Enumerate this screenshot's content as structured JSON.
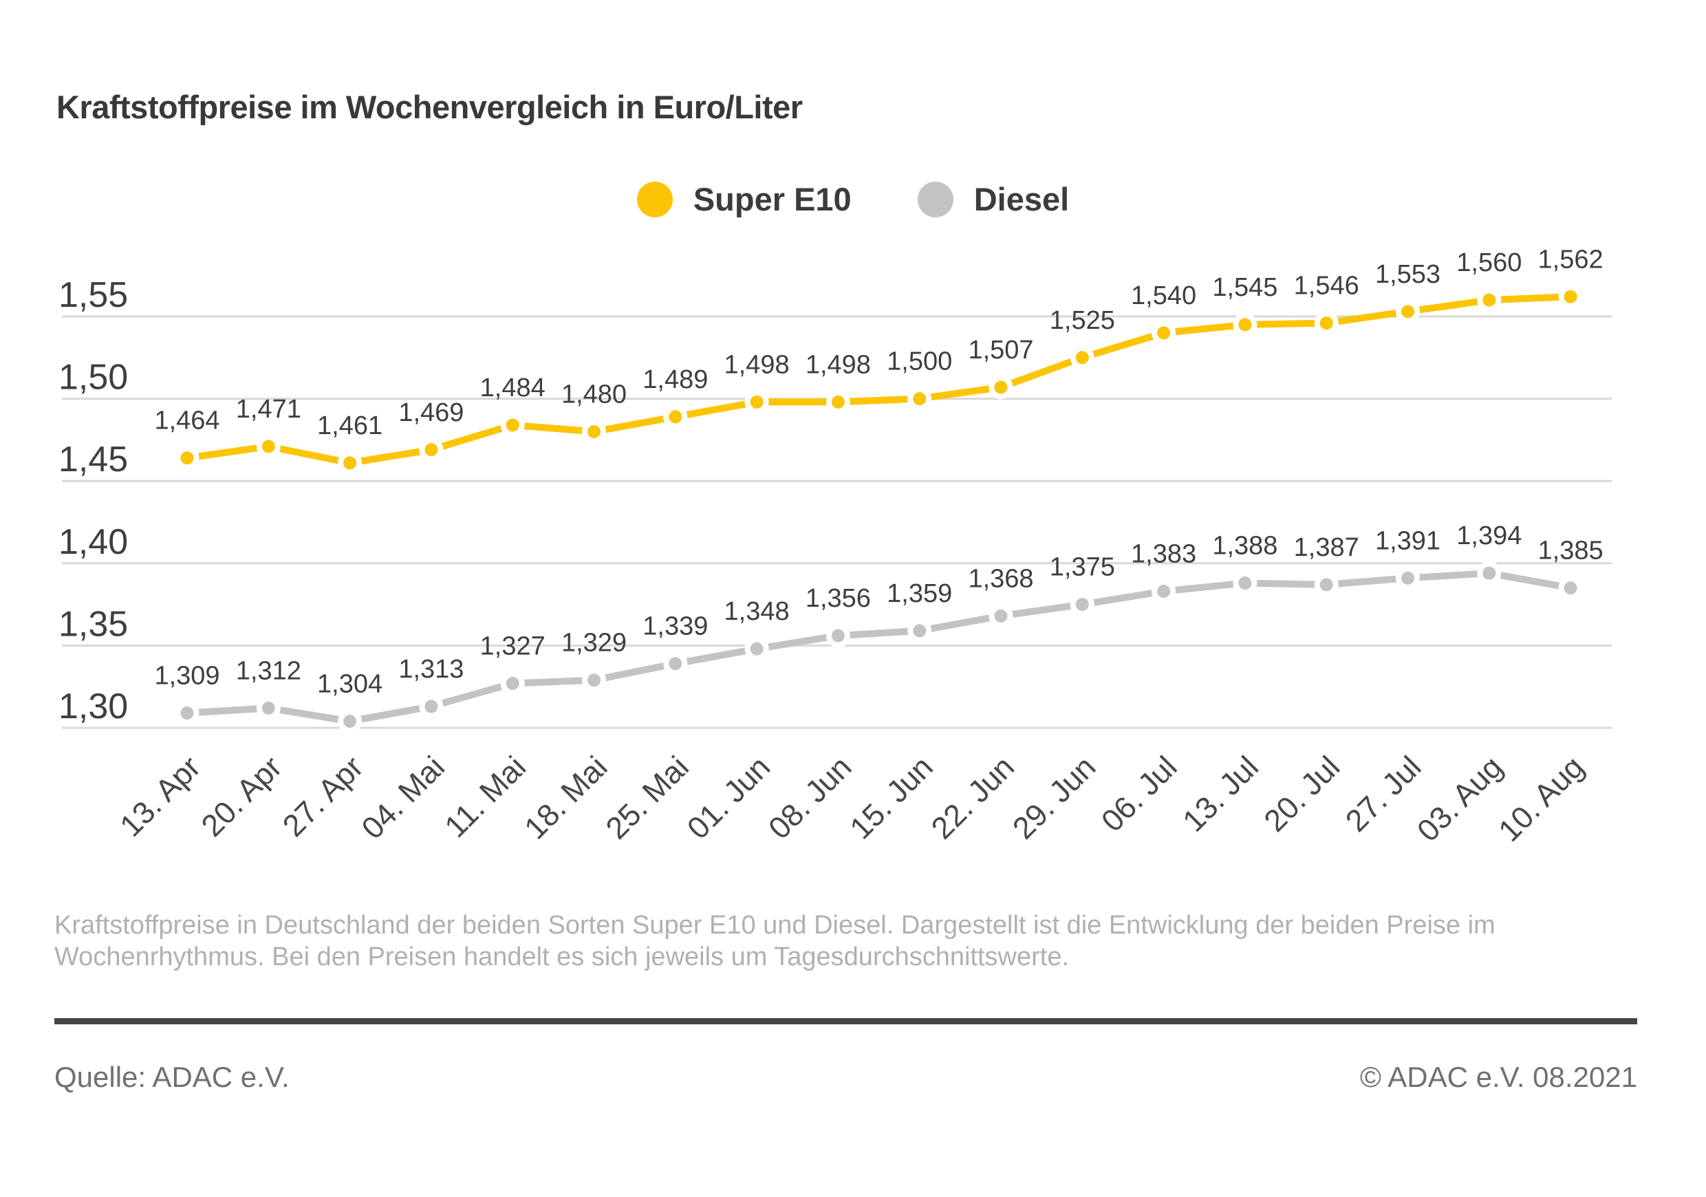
{
  "title": "Kraftstoffpreise im Wochenvergleich in Euro/Liter",
  "chart_data": {
    "type": "line",
    "categories": [
      "13. Apr",
      "20. Apr",
      "27. Apr",
      "04. Mai",
      "11. Mai",
      "18. Mai",
      "25. Mai",
      "01. Jun",
      "08. Jun",
      "15. Jun",
      "22. Jun",
      "29. Jun",
      "06. Jul",
      "13. Jul",
      "20. Jul",
      "27. Jul",
      "03. Aug",
      "10. Aug"
    ],
    "series": [
      {
        "name": "Super E10",
        "color": "#fbc505",
        "values": [
          1.464,
          1.471,
          1.461,
          1.469,
          1.484,
          1.48,
          1.489,
          1.498,
          1.498,
          1.5,
          1.507,
          1.525,
          1.54,
          1.545,
          1.546,
          1.553,
          1.56,
          1.562
        ]
      },
      {
        "name": "Diesel",
        "color": "#c3c3c3",
        "values": [
          1.309,
          1.312,
          1.304,
          1.313,
          1.327,
          1.329,
          1.339,
          1.348,
          1.356,
          1.359,
          1.368,
          1.375,
          1.383,
          1.388,
          1.387,
          1.391,
          1.394,
          1.385
        ]
      }
    ],
    "yticks": [
      1.55,
      1.5,
      1.45,
      1.4,
      1.35,
      1.3
    ],
    "ylim": [
      1.275,
      1.575
    ],
    "decimal_separator": ",",
    "grid": true,
    "legend_position": "top-center",
    "value_labels": true,
    "x_tick_rotation_deg": -45
  },
  "colors": {
    "grid_line": "#d8d8d8",
    "tick_text": "#3e3e3e",
    "value_label_text": "#3e3e3e",
    "x_label_text": "#474747"
  },
  "description_lines": [
    "Kraftstoffpreise in Deutschland der beiden Sorten Super E10 und Diesel. Dargestellt ist die Entwicklung der beiden Preise im",
    "Wochenrhythmus. Bei den Preisen handelt es sich jeweils um Tagesdurchschnittswerte."
  ],
  "footer": {
    "source": "Quelle: ADAC e.V.",
    "copyright": "© ADAC e.V. 08.2021"
  }
}
